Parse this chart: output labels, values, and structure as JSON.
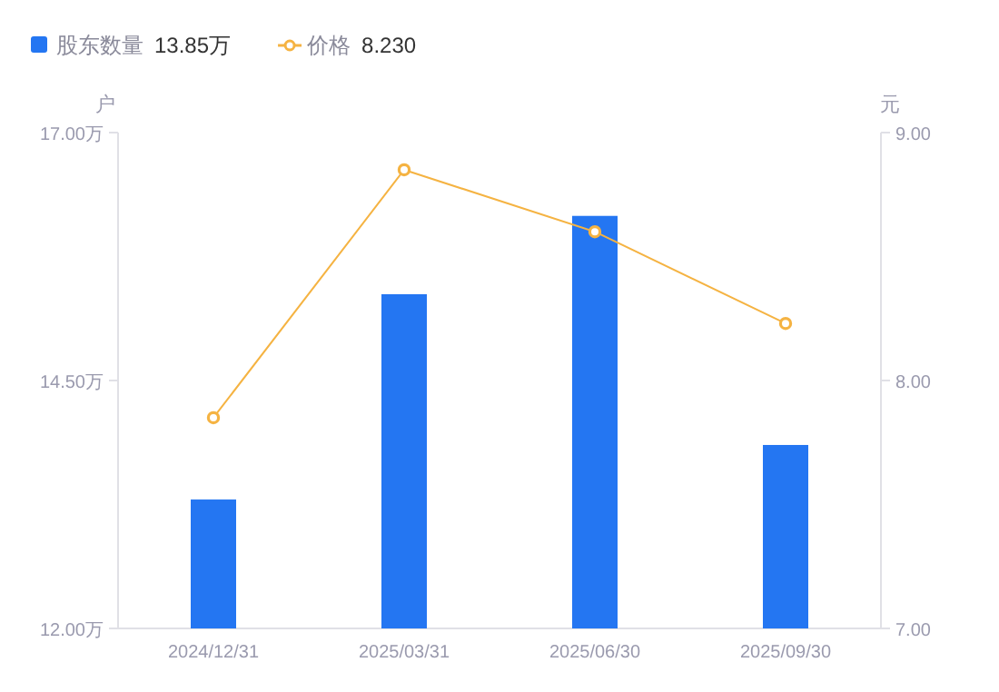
{
  "chart_data": {
    "type": "bar",
    "categories": [
      "2024/12/31",
      "2025/03/31",
      "2025/06/30",
      "2025/09/30"
    ],
    "series": [
      {
        "name": "股东数量",
        "color": "#2476f2",
        "values": [
          13.3,
          15.37,
          16.16,
          13.85
        ]
      },
      {
        "name": "价格",
        "type": "line",
        "axis": "y2",
        "color": "#f5b342",
        "marker": "circle",
        "values": [
          7.85,
          8.85,
          8.6,
          8.23
        ]
      }
    ],
    "annotations": [
      "13.85万",
      "8.230"
    ],
    "ylabel": "户",
    "y2label": "元",
    "ylim": [
      12,
      17
    ],
    "yticks": [
      {
        "value": 12,
        "label": "12.00万"
      },
      {
        "value": 14.5,
        "label": "14.50万"
      },
      {
        "value": 17,
        "label": "17.00万"
      }
    ],
    "y2lim": [
      7,
      9
    ],
    "y2ticks": [
      {
        "value": 7,
        "label": "7.00"
      },
      {
        "value": 8,
        "label": "8.00"
      },
      {
        "value": 9,
        "label": "9.00"
      }
    ],
    "legend": "top left"
  }
}
